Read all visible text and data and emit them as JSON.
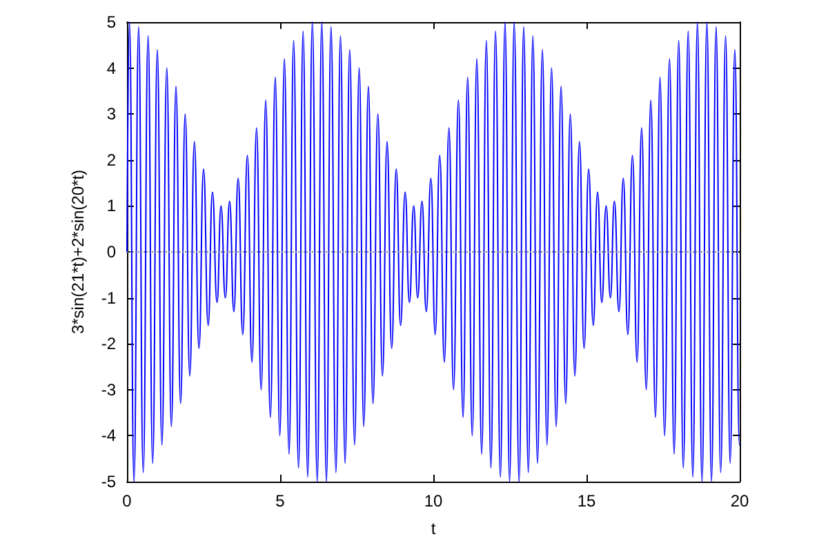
{
  "chart_data": {
    "type": "line",
    "xlabel": "t",
    "ylabel": "3*sin(21*t)+2*sin(20*t)",
    "color": "#0000ff",
    "marker": "none",
    "xlim": [
      0,
      20
    ],
    "xticks": [
      0,
      5,
      10,
      15,
      20
    ],
    "ylim": [
      -5,
      5
    ],
    "yticks": [
      -5,
      -4,
      -3,
      -2,
      -1,
      0,
      1,
      2,
      3,
      4,
      5
    ],
    "ref_lines": [
      {
        "axis": "y",
        "value": 0,
        "color": "#808080",
        "line_style": "dotted"
      }
    ],
    "x": [
      0,
      0.08,
      0.23,
      0.38,
      0.53,
      0.69,
      0.84,
      0.99,
      1.14,
      1.3,
      1.45,
      1.6,
      1.75,
      1.9,
      2.05,
      2.2,
      2.35,
      2.5,
      2.65,
      2.79,
      2.94,
      3.07,
      3.21,
      3.35,
      3.49,
      3.63,
      3.78,
      3.93,
      4.08,
      4.23,
      4.38,
      4.53,
      4.68,
      4.84,
      4.99,
      5.14,
      5.29,
      5.44,
      5.6,
      5.75,
      5.9,
      6.05,
      6.21,
      6.36,
      6.51,
      6.66,
      6.82,
      6.97,
      7.12,
      7.27,
      7.43,
      7.58,
      7.73,
      7.88,
      8.03,
      8.19,
      8.34,
      8.49,
      8.64,
      8.79,
      8.93,
      9.08,
      9.22,
      9.36,
      9.49,
      9.63,
      9.77,
      9.92,
      10.06,
      10.21,
      10.36,
      10.51,
      10.66,
      10.82,
      10.97,
      11.12,
      11.27,
      11.42,
      11.58,
      11.73,
      11.88,
      12.03,
      12.19,
      12.34,
      12.49,
      12.64,
      12.8,
      12.95,
      13.1,
      13.25,
      13.4,
      13.56,
      13.71,
      13.86,
      14.01,
      14.17,
      14.32,
      14.47,
      14.62,
      14.77,
      14.92,
      15.07,
      15.22,
      15.36,
      15.5,
      15.64,
      15.78,
      15.91,
      16.06,
      16.2,
      16.35,
      16.5,
      16.65,
      16.8,
      16.95,
      17.1,
      17.25,
      17.4,
      17.55,
      17.71,
      17.86,
      18.01,
      18.16,
      18.32,
      18.47,
      18.62,
      18.77,
      18.93,
      19.08,
      19.23,
      19.38,
      19.54,
      19.69,
      19.84,
      19.99,
      20
    ],
    "values": [
      0,
      5,
      -5,
      4.9,
      -4.8,
      4.7,
      -4.6,
      4.4,
      -4.2,
      4,
      -3.8,
      3.6,
      -3.3,
      3,
      -2.7,
      2.4,
      -2.1,
      1.8,
      -1.6,
      1.3,
      -1.1,
      1,
      -1,
      1.1,
      -1.3,
      1.6,
      -1.8,
      2.1,
      -2.4,
      2.7,
      -3,
      3.3,
      -3.6,
      3.8,
      -4,
      4.2,
      -4.4,
      4.6,
      -4.7,
      4.8,
      -4.9,
      5,
      -5,
      5,
      -5,
      4.9,
      -4.8,
      4.7,
      -4.6,
      4.4,
      -4.2,
      4,
      -3.8,
      3.6,
      -3.3,
      3,
      -2.7,
      2.4,
      -2.1,
      1.8,
      -1.6,
      1.3,
      -1.1,
      1,
      -1,
      1.1,
      -1.3,
      1.6,
      -1.8,
      2.1,
      -2.4,
      2.7,
      -3,
      3.3,
      -3.6,
      3.8,
      -4,
      4.2,
      -4.4,
      4.6,
      -4.7,
      4.8,
      -4.9,
      5,
      -5,
      5,
      -5,
      4.9,
      -4.8,
      4.7,
      -4.6,
      4.4,
      -4.2,
      4,
      -3.8,
      3.6,
      -3.3,
      3,
      -2.7,
      2.4,
      -2.1,
      1.8,
      -1.6,
      1.3,
      -1.1,
      1,
      -1,
      1.1,
      -1.3,
      1.6,
      -1.8,
      2.1,
      -2.4,
      2.7,
      -3,
      3.3,
      -3.6,
      3.8,
      -4,
      4.2,
      -4.4,
      4.6,
      -4.7,
      4.8,
      -4.9,
      5,
      -5,
      5,
      -5,
      4.9,
      -4.8,
      4.7,
      -4.6,
      4.4,
      -4.2,
      -4.2
    ]
  }
}
